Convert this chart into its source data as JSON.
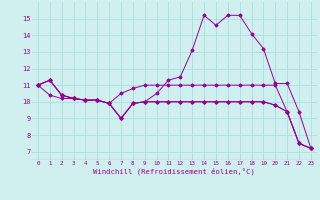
{
  "xlabel": "Windchill (Refroidissement éolien,°C)",
  "background_color": "#cff0ee",
  "grid_color": "#aadddd",
  "line_color": "#990099",
  "xlim": [
    -0.5,
    23.5
  ],
  "ylim": [
    6.5,
    16.0
  ],
  "xticks": [
    0,
    1,
    2,
    3,
    4,
    5,
    6,
    7,
    8,
    9,
    10,
    11,
    12,
    13,
    14,
    15,
    16,
    17,
    18,
    19,
    20,
    21,
    22,
    23
  ],
  "yticks": [
    7,
    8,
    9,
    10,
    11,
    12,
    13,
    14,
    15
  ],
  "series": [
    [
      11.0,
      11.3,
      10.4,
      10.2,
      10.1,
      10.1,
      9.9,
      9.0,
      9.9,
      10.0,
      10.5,
      11.3,
      11.5,
      13.1,
      15.2,
      14.6,
      15.2,
      15.2,
      14.1,
      13.2,
      11.1,
      11.1,
      9.4,
      7.2
    ],
    [
      11.0,
      11.3,
      10.4,
      10.2,
      10.1,
      10.1,
      9.9,
      10.5,
      10.8,
      11.0,
      11.0,
      11.0,
      11.0,
      11.0,
      11.0,
      11.0,
      11.0,
      11.0,
      11.0,
      11.0,
      11.0,
      9.4,
      7.5,
      7.2
    ],
    [
      11.0,
      11.3,
      10.4,
      10.2,
      10.1,
      10.1,
      9.9,
      9.0,
      9.9,
      10.0,
      10.0,
      10.0,
      10.0,
      10.0,
      10.0,
      10.0,
      10.0,
      10.0,
      10.0,
      10.0,
      9.8,
      9.4,
      7.5,
      7.2
    ],
    [
      11.0,
      10.4,
      10.2,
      10.2,
      10.1,
      10.1,
      9.9,
      9.0,
      9.9,
      10.0,
      10.0,
      10.0,
      10.0,
      10.0,
      10.0,
      10.0,
      10.0,
      10.0,
      10.0,
      10.0,
      9.8,
      9.4,
      7.5,
      7.2
    ]
  ]
}
